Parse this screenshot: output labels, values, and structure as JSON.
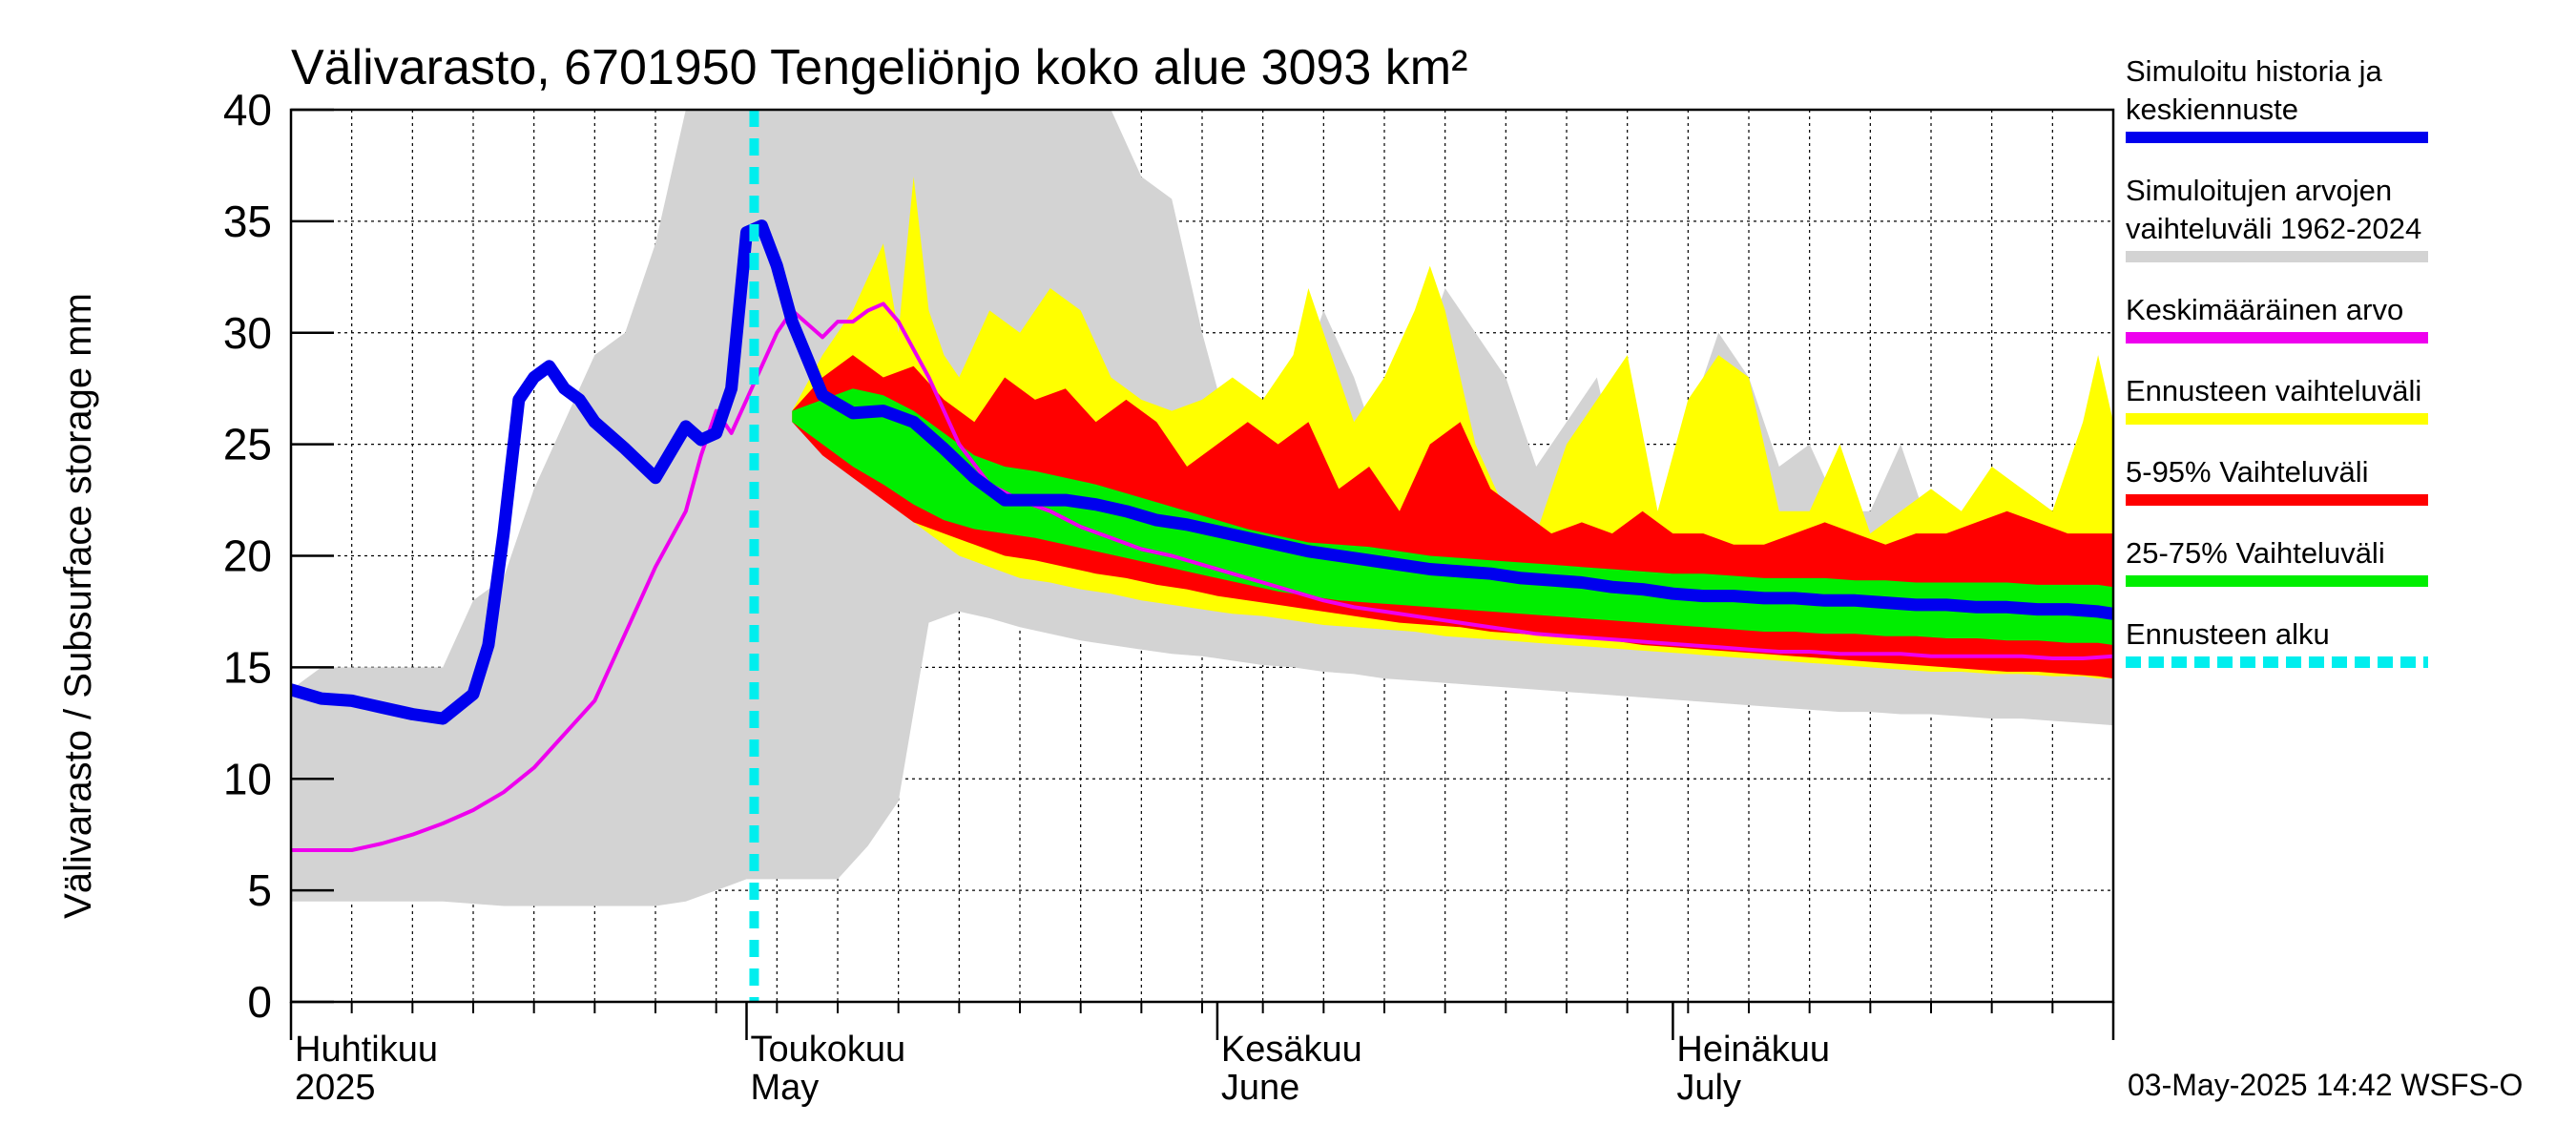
{
  "chart_data": {
    "type": "area",
    "title": "Välivarasto, 6701950 Tengeliönjo koko alue 3093 km²",
    "ylabel": "Välivarasto / Subsurface storage  mm",
    "ylim": [
      0,
      40
    ],
    "yticks": [
      0,
      5,
      10,
      15,
      20,
      25,
      30,
      35,
      40
    ],
    "x_domain": [
      0,
      120
    ],
    "x_unit": "days since 2025-04-01",
    "grid": true,
    "month_labels": [
      {
        "day": 0,
        "fi": "Huhtikuu",
        "en": "2025"
      },
      {
        "day": 30,
        "fi": "Toukokuu",
        "en": "May"
      },
      {
        "day": 61,
        "fi": "Kesäkuu",
        "en": "June"
      },
      {
        "day": 91,
        "fi": "Heinäkuu",
        "en": "July"
      }
    ],
    "month_boundaries": [
      0,
      30,
      61,
      91,
      120
    ],
    "forecast_start_day": 30.5,
    "colors": {
      "history": "#0000ee",
      "range_all": "#d3d3d3",
      "mean": "#ee00ee",
      "forecast_range": "#ffff00",
      "p5_95": "#ff0000",
      "p25_75": "#00ee00",
      "forecast_start": "#00eeee"
    },
    "series": [
      {
        "name": "range_1962_2024",
        "x": [
          0,
          2,
          6,
          10,
          12,
          14,
          16,
          18,
          20,
          22,
          24,
          26,
          28,
          30,
          32,
          34,
          36,
          38,
          40,
          42,
          44,
          46,
          48,
          50,
          52,
          54,
          56,
          58,
          60,
          62,
          64,
          66,
          68,
          70,
          72,
          74,
          76,
          78,
          80,
          82,
          84,
          86,
          88,
          90,
          92,
          94,
          96,
          98,
          100,
          102,
          104,
          106,
          108,
          110,
          112,
          114,
          116,
          118,
          120
        ],
        "upper": [
          14,
          15,
          15,
          15,
          18,
          19,
          23,
          26,
          29,
          30,
          34,
          40,
          40,
          40,
          40,
          40,
          40,
          40,
          40,
          40,
          40,
          40,
          40,
          40,
          40,
          40,
          37,
          36,
          30,
          25,
          25,
          27,
          31,
          28,
          24,
          28,
          32,
          30,
          28,
          24,
          26,
          28,
          22,
          21,
          26,
          30,
          28,
          24,
          25,
          22,
          22,
          25,
          21,
          22,
          23,
          23,
          22,
          24,
          25
        ],
        "lower": [
          4.5,
          4.5,
          4.5,
          4.5,
          4.4,
          4.3,
          4.3,
          4.3,
          4.3,
          4.3,
          4.3,
          4.5,
          5.0,
          5.5,
          5.5,
          5.5,
          5.5,
          7.0,
          9.0,
          17.0,
          17.5,
          17.2,
          16.8,
          16.5,
          16.2,
          16.0,
          15.8,
          15.6,
          15.5,
          15.3,
          15.1,
          15.0,
          14.8,
          14.7,
          14.5,
          14.4,
          14.3,
          14.2,
          14.1,
          14.0,
          13.9,
          13.8,
          13.7,
          13.6,
          13.5,
          13.4,
          13.3,
          13.2,
          13.1,
          13.0,
          13.0,
          12.9,
          12.9,
          12.8,
          12.7,
          12.7,
          12.6,
          12.5,
          12.4
        ]
      },
      {
        "name": "forecast_range",
        "x": [
          33,
          35,
          37,
          39,
          40,
          41,
          42,
          43,
          44,
          46,
          48,
          50,
          52,
          54,
          56,
          58,
          60,
          62,
          64,
          66,
          67,
          68,
          70,
          72,
          74,
          75,
          76,
          78,
          80,
          82,
          84,
          86,
          88,
          90,
          92,
          94,
          96,
          98,
          100,
          102,
          104,
          106,
          108,
          110,
          112,
          114,
          116,
          118,
          119,
          120
        ],
        "upper": [
          26.5,
          29,
          31,
          34,
          30,
          37,
          31,
          29,
          28,
          31,
          30,
          32,
          31,
          28,
          27,
          26.5,
          27,
          28,
          27,
          29,
          32,
          30,
          26,
          28,
          31,
          33,
          31,
          25,
          22,
          21,
          25,
          27,
          29,
          22,
          27,
          29,
          28,
          22,
          22,
          25,
          21,
          22,
          23,
          22,
          24,
          23,
          22,
          26,
          29,
          26
        ],
        "lower": [
          26,
          25,
          24,
          23,
          22,
          21.5,
          21,
          20.5,
          20,
          19.5,
          19,
          18.8,
          18.5,
          18.3,
          18.0,
          17.8,
          17.6,
          17.4,
          17.3,
          17.1,
          17.0,
          16.9,
          16.8,
          16.7,
          16.6,
          16.5,
          16.4,
          16.3,
          16.2,
          16.1,
          16.0,
          15.9,
          15.8,
          15.7,
          15.6,
          15.5,
          15.4,
          15.3,
          15.2,
          15.1,
          15.0,
          14.9,
          14.8,
          14.8,
          14.7,
          14.7,
          14.6,
          14.6,
          14.5,
          14.5
        ]
      },
      {
        "name": "p5_95",
        "x": [
          33,
          35,
          37,
          39,
          41,
          43,
          45,
          47,
          49,
          51,
          53,
          55,
          57,
          59,
          61,
          63,
          65,
          67,
          69,
          71,
          73,
          75,
          77,
          79,
          81,
          83,
          85,
          87,
          89,
          91,
          93,
          95,
          97,
          99,
          101,
          103,
          105,
          107,
          109,
          111,
          113,
          115,
          117,
          119,
          120
        ],
        "upper": [
          26.5,
          28,
          29,
          28,
          28.5,
          27,
          26,
          28,
          27,
          27.5,
          26,
          27,
          26,
          24,
          25,
          26,
          25,
          26,
          23,
          24,
          22,
          25,
          26,
          23,
          22,
          21,
          21.5,
          21,
          22,
          21,
          21,
          20.5,
          20.5,
          21,
          21.5,
          21,
          20.5,
          21,
          21,
          21.5,
          22,
          21.5,
          21,
          21,
          21
        ],
        "lower": [
          26,
          24.5,
          23.5,
          22.5,
          21.5,
          21,
          20.5,
          20,
          19.8,
          19.5,
          19.2,
          19,
          18.7,
          18.5,
          18.2,
          18.0,
          17.8,
          17.6,
          17.4,
          17.2,
          17.0,
          16.9,
          16.8,
          16.6,
          16.5,
          16.4,
          16.3,
          16.2,
          16.0,
          15.9,
          15.8,
          15.7,
          15.6,
          15.5,
          15.4,
          15.3,
          15.2,
          15.1,
          15.0,
          14.9,
          14.8,
          14.8,
          14.7,
          14.6,
          14.5
        ]
      },
      {
        "name": "p25_75",
        "x": [
          33,
          35,
          37,
          39,
          41,
          43,
          45,
          47,
          49,
          51,
          53,
          55,
          57,
          59,
          61,
          63,
          65,
          67,
          69,
          71,
          73,
          75,
          77,
          79,
          81,
          83,
          85,
          87,
          89,
          91,
          93,
          95,
          97,
          99,
          101,
          103,
          105,
          107,
          109,
          111,
          113,
          115,
          117,
          119,
          120
        ],
        "upper": [
          26.5,
          27,
          27.5,
          27.2,
          26.5,
          25.5,
          24.5,
          24,
          23.8,
          23.5,
          23.2,
          22.8,
          22.4,
          22,
          21.6,
          21.2,
          20.9,
          20.6,
          20.5,
          20.4,
          20.2,
          20.0,
          19.9,
          19.8,
          19.7,
          19.6,
          19.5,
          19.4,
          19.3,
          19.2,
          19.2,
          19.1,
          19.0,
          19.0,
          19.0,
          18.9,
          18.9,
          18.8,
          18.8,
          18.8,
          18.8,
          18.7,
          18.7,
          18.7,
          18.6
        ],
        "lower": [
          26,
          25,
          24,
          23.2,
          22.3,
          21.6,
          21.2,
          21,
          20.8,
          20.5,
          20.2,
          19.9,
          19.6,
          19.3,
          19.0,
          18.7,
          18.4,
          18.2,
          18.0,
          17.9,
          17.8,
          17.7,
          17.6,
          17.5,
          17.4,
          17.3,
          17.2,
          17.1,
          17.0,
          16.9,
          16.8,
          16.7,
          16.6,
          16.6,
          16.5,
          16.5,
          16.4,
          16.4,
          16.3,
          16.3,
          16.2,
          16.2,
          16.1,
          16.1,
          16.0
        ]
      },
      {
        "name": "history_and_median_forecast",
        "x": [
          0,
          2,
          4,
          6,
          8,
          10,
          12,
          13,
          14,
          15,
          16,
          17,
          18,
          19,
          20,
          22,
          24,
          26,
          27,
          28,
          29,
          30,
          31,
          32,
          33,
          35,
          37,
          39,
          41,
          43,
          45,
          47,
          49,
          51,
          53,
          55,
          57,
          59,
          61,
          63,
          65,
          67,
          69,
          71,
          73,
          75,
          77,
          79,
          81,
          83,
          85,
          87,
          89,
          91,
          93,
          95,
          97,
          99,
          101,
          103,
          105,
          107,
          109,
          111,
          113,
          115,
          117,
          119,
          120
        ],
        "values": [
          14,
          13.6,
          13.5,
          13.2,
          12.9,
          12.7,
          13.8,
          16,
          21,
          27,
          28,
          28.5,
          27.5,
          27,
          26,
          24.8,
          23.5,
          25.8,
          25.2,
          25.5,
          27.5,
          34.5,
          34.8,
          33,
          30.5,
          27.2,
          26.4,
          26.5,
          26,
          24.8,
          23.5,
          22.5,
          22.5,
          22.5,
          22.3,
          22.0,
          21.6,
          21.4,
          21.1,
          20.8,
          20.5,
          20.2,
          20.0,
          19.8,
          19.6,
          19.4,
          19.3,
          19.2,
          19.0,
          18.9,
          18.8,
          18.6,
          18.5,
          18.3,
          18.2,
          18.2,
          18.1,
          18.1,
          18.0,
          18.0,
          17.9,
          17.8,
          17.8,
          17.7,
          17.7,
          17.6,
          17.6,
          17.5,
          17.4
        ]
      },
      {
        "name": "mean_value",
        "x": [
          0,
          2,
          4,
          6,
          8,
          10,
          12,
          14,
          16,
          18,
          20,
          22,
          24,
          26,
          27,
          28,
          29,
          30,
          31,
          32,
          33,
          35,
          36,
          37,
          38,
          39,
          40,
          42,
          44,
          46,
          48,
          50,
          52,
          54,
          56,
          58,
          60,
          62,
          64,
          66,
          68,
          70,
          72,
          74,
          76,
          78,
          80,
          82,
          84,
          86,
          88,
          90,
          92,
          94,
          96,
          98,
          100,
          102,
          104,
          106,
          108,
          110,
          112,
          114,
          116,
          118,
          120
        ],
        "values": [
          6.8,
          6.8,
          6.8,
          7.1,
          7.5,
          8.0,
          8.6,
          9.4,
          10.5,
          12.0,
          13.5,
          16.5,
          19.5,
          22,
          24.5,
          26.5,
          25.5,
          27,
          28.5,
          30,
          31,
          29.8,
          30.5,
          30.5,
          31,
          31.3,
          30.5,
          28,
          25,
          23.2,
          22.5,
          22,
          21.3,
          20.8,
          20.3,
          20.0,
          19.6,
          19.2,
          18.8,
          18.4,
          18.0,
          17.7,
          17.5,
          17.3,
          17.1,
          16.9,
          16.7,
          16.5,
          16.4,
          16.3,
          16.2,
          16.1,
          16.0,
          15.9,
          15.8,
          15.7,
          15.7,
          15.6,
          15.6,
          15.6,
          15.5,
          15.5,
          15.5,
          15.5,
          15.4,
          15.4,
          15.5
        ]
      }
    ],
    "legend": [
      {
        "key": "history",
        "lines": [
          "Simuloitu historia ja",
          "keskiennuste"
        ],
        "color": "#0000ee",
        "style": "solid"
      },
      {
        "key": "range_all",
        "lines": [
          "Simuloitujen arvojen",
          "vaihteluväli 1962-2024"
        ],
        "color": "#d3d3d3",
        "style": "solid"
      },
      {
        "key": "mean",
        "lines": [
          "Keskimääräinen arvo"
        ],
        "color": "#ee00ee",
        "style": "solid"
      },
      {
        "key": "forecast_range",
        "lines": [
          "Ennusteen vaihteluväli"
        ],
        "color": "#ffff00",
        "style": "solid"
      },
      {
        "key": "p5_95",
        "lines": [
          "5-95% Vaihteluväli"
        ],
        "color": "#ff0000",
        "style": "solid"
      },
      {
        "key": "p25_75",
        "lines": [
          "25-75% Vaihteluväli"
        ],
        "color": "#00ee00",
        "style": "solid"
      },
      {
        "key": "forecast_start",
        "lines": [
          "Ennusteen alku"
        ],
        "color": "#00eeee",
        "style": "dashed"
      }
    ],
    "footer": "03-May-2025 14:42 WSFS-O"
  }
}
